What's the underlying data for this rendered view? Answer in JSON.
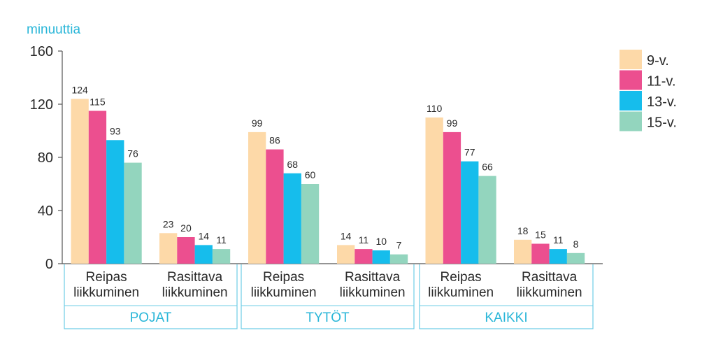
{
  "chart_data": {
    "type": "bar",
    "ylabel": "minuuttia",
    "ylim": [
      0,
      160
    ],
    "yticks": [
      0,
      40,
      80,
      120,
      160
    ],
    "grid": false,
    "legend_position": "top-right",
    "groups": [
      {
        "label": "POJAT",
        "categories": [
          "Reipas liikkuminen",
          "Rasittava liikkuminen"
        ]
      },
      {
        "label": "TYTÖT",
        "categories": [
          "Reipas liikkuminen",
          "Rasittava liikkuminen"
        ]
      },
      {
        "label": "KAIKKI",
        "categories": [
          "Reipas liikkuminen",
          "Rasittava liikkuminen"
        ]
      }
    ],
    "category_lines": {
      "Reipas liikkuminen": [
        "Reipas",
        "liikkuminen"
      ],
      "Rasittava liikkuminen": [
        "Rasittava",
        "liikkuminen"
      ]
    },
    "series": [
      {
        "name": "9-v.",
        "color": "#fdd9a8",
        "values": [
          124,
          23,
          99,
          14,
          110,
          18
        ]
      },
      {
        "name": "11-v.",
        "color": "#ec4f8f",
        "values": [
          115,
          20,
          86,
          11,
          99,
          15
        ]
      },
      {
        "name": "13-v.",
        "color": "#16bdec",
        "values": [
          93,
          14,
          68,
          10,
          77,
          11
        ]
      },
      {
        "name": "15-v.",
        "color": "#93d5be",
        "values": [
          76,
          11,
          60,
          7,
          66,
          8
        ]
      }
    ]
  }
}
